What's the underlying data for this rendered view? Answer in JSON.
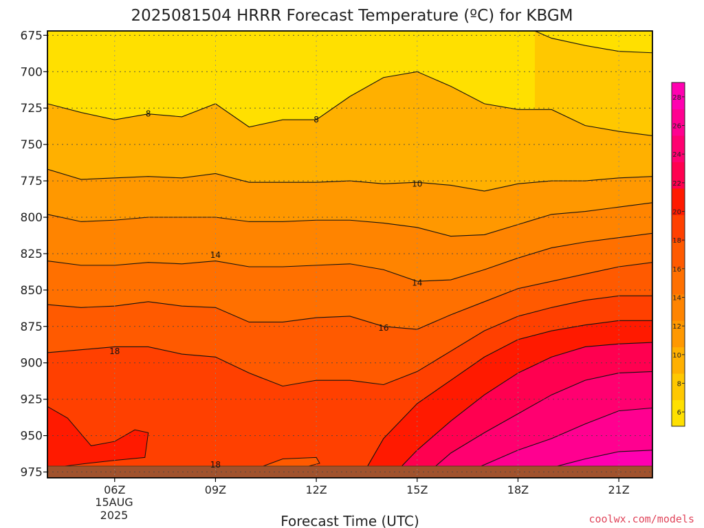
{
  "chart_data": {
    "type": "heatmap",
    "title": "2025081504 HRRR Forecast Temperature (ºC) for KBGM",
    "xlabel": "Forecast Time (UTC)",
    "ylabel": "",
    "x_ticks": [
      {
        "hour": 6,
        "label": "06Z"
      },
      {
        "hour": 9,
        "label": "09Z"
      },
      {
        "hour": 12,
        "label": "12Z"
      },
      {
        "hour": 15,
        "label": "15Z"
      },
      {
        "hour": 18,
        "label": "18Z"
      },
      {
        "hour": 21,
        "label": "21Z"
      }
    ],
    "date_label_lines": [
      "15AUG",
      "2025"
    ],
    "xlim": [
      4,
      22
    ],
    "y_ticks": [
      675,
      700,
      725,
      750,
      775,
      800,
      825,
      850,
      875,
      900,
      925,
      950,
      975
    ],
    "ylim": [
      672,
      979
    ],
    "ground_level_mb": 971,
    "ground_color": "#a0522d",
    "grid": true,
    "colorbar": {
      "ticks": [
        6,
        8,
        10,
        12,
        14,
        16,
        18,
        20,
        22,
        24,
        26,
        28
      ],
      "min": 5,
      "max": 29,
      "colors": [
        "#ffe000",
        "#ffc800",
        "#ffb000",
        "#ff9800",
        "#ff8400",
        "#ff7000",
        "#ff5a00",
        "#ff4000",
        "#ff1a00",
        "#ff0050",
        "#ff0070",
        "#ff0090",
        "#ff00b0"
      ]
    },
    "contour_labels": [
      {
        "text": "8",
        "hour": 7.0,
        "mb": 729
      },
      {
        "text": "8",
        "hour": 12.0,
        "mb": 733
      },
      {
        "text": "10",
        "hour": 15.0,
        "mb": 777
      },
      {
        "text": "14",
        "hour": 9.0,
        "mb": 826
      },
      {
        "text": "14",
        "hour": 15.0,
        "mb": 845
      },
      {
        "text": "16",
        "hour": 14.0,
        "mb": 876
      },
      {
        "text": "18",
        "hour": 6.0,
        "mb": 892
      },
      {
        "text": "18",
        "hour": 9.0,
        "mb": 970
      }
    ],
    "isotherms": [
      {
        "value": 6,
        "points": [
          [
            18.5,
            672
          ],
          [
            19,
            677
          ],
          [
            20,
            682
          ],
          [
            21,
            686
          ],
          [
            22,
            687
          ]
        ]
      },
      {
        "value": 8,
        "points": [
          [
            4,
            722
          ],
          [
            5,
            728
          ],
          [
            6,
            733
          ],
          [
            7,
            729
          ],
          [
            8,
            731
          ],
          [
            9,
            722
          ],
          [
            10,
            738
          ],
          [
            11,
            733
          ],
          [
            12,
            733
          ],
          [
            13,
            717
          ],
          [
            14,
            704
          ],
          [
            15,
            700
          ],
          [
            16,
            710
          ],
          [
            17,
            722
          ],
          [
            18,
            726
          ],
          [
            19,
            726
          ],
          [
            20,
            737
          ],
          [
            21,
            741
          ],
          [
            22,
            744
          ]
        ]
      },
      {
        "value": 10,
        "points": [
          [
            4,
            767
          ],
          [
            5,
            774
          ],
          [
            6,
            773
          ],
          [
            7,
            772
          ],
          [
            8,
            773
          ],
          [
            9,
            770
          ],
          [
            10,
            776
          ],
          [
            11,
            776
          ],
          [
            12,
            776
          ],
          [
            13,
            775
          ],
          [
            14,
            777
          ],
          [
            15,
            776
          ],
          [
            16,
            778
          ],
          [
            17,
            782
          ],
          [
            18,
            777
          ],
          [
            19,
            775
          ],
          [
            20,
            775
          ],
          [
            21,
            773
          ],
          [
            22,
            772
          ]
        ]
      },
      {
        "value": 12,
        "points": [
          [
            4,
            798
          ],
          [
            5,
            803
          ],
          [
            6,
            802
          ],
          [
            7,
            800
          ],
          [
            8,
            800
          ],
          [
            9,
            800
          ],
          [
            10,
            803
          ],
          [
            11,
            803
          ],
          [
            12,
            802
          ],
          [
            13,
            802
          ],
          [
            14,
            804
          ],
          [
            15,
            807
          ],
          [
            16,
            813
          ],
          [
            17,
            812
          ],
          [
            18,
            805
          ],
          [
            19,
            798
          ],
          [
            20,
            796
          ],
          [
            21,
            793
          ],
          [
            22,
            790
          ]
        ]
      },
      {
        "value": 14,
        "points": [
          [
            4,
            830
          ],
          [
            5,
            833
          ],
          [
            6,
            833
          ],
          [
            7,
            831
          ],
          [
            8,
            832
          ],
          [
            9,
            830
          ],
          [
            10,
            834
          ],
          [
            11,
            834
          ],
          [
            12,
            833
          ],
          [
            13,
            832
          ],
          [
            14,
            836
          ],
          [
            15,
            844
          ],
          [
            16,
            843
          ],
          [
            17,
            836
          ],
          [
            18,
            828
          ],
          [
            19,
            821
          ],
          [
            20,
            817
          ],
          [
            21,
            814
          ],
          [
            22,
            811
          ]
        ]
      },
      {
        "value": 16,
        "points": [
          [
            4,
            860
          ],
          [
            5,
            862
          ],
          [
            6,
            861
          ],
          [
            7,
            858
          ],
          [
            8,
            861
          ],
          [
            9,
            862
          ],
          [
            10,
            872
          ],
          [
            11,
            872
          ],
          [
            12,
            869
          ],
          [
            13,
            868
          ],
          [
            14,
            875
          ],
          [
            15,
            877
          ],
          [
            16,
            867
          ],
          [
            17,
            858
          ],
          [
            18,
            849
          ],
          [
            19,
            844
          ],
          [
            20,
            839
          ],
          [
            21,
            834
          ],
          [
            22,
            831
          ]
        ]
      },
      {
        "value": 18,
        "points": [
          [
            4,
            893
          ],
          [
            5,
            891
          ],
          [
            6,
            889
          ],
          [
            7,
            889
          ],
          [
            8,
            894
          ],
          [
            9,
            896
          ],
          [
            10,
            907
          ],
          [
            11,
            916
          ],
          [
            12,
            912
          ],
          [
            13,
            912
          ],
          [
            14,
            915
          ],
          [
            15,
            906
          ],
          [
            16,
            892
          ],
          [
            17,
            878
          ],
          [
            18,
            868
          ],
          [
            19,
            862
          ],
          [
            20,
            857
          ],
          [
            21,
            854
          ],
          [
            22,
            854
          ]
        ]
      },
      {
        "value": 20,
        "points": [
          [
            13.5,
            972
          ],
          [
            14,
            952
          ],
          [
            15,
            928
          ],
          [
            16,
            912
          ],
          [
            17,
            896
          ],
          [
            18,
            884
          ],
          [
            19,
            878
          ],
          [
            20,
            874
          ],
          [
            21,
            871
          ],
          [
            22,
            871
          ]
        ]
      },
      {
        "value": 22,
        "points": [
          [
            14.5,
            972
          ],
          [
            15,
            960
          ],
          [
            16,
            940
          ],
          [
            17,
            922
          ],
          [
            18,
            907
          ],
          [
            19,
            896
          ],
          [
            20,
            889
          ],
          [
            21,
            887
          ],
          [
            22,
            886
          ]
        ]
      },
      {
        "value": 24,
        "points": [
          [
            15.5,
            972
          ],
          [
            16,
            962
          ],
          [
            17,
            948
          ],
          [
            18,
            935
          ],
          [
            19,
            922
          ],
          [
            20,
            912
          ],
          [
            21,
            907
          ],
          [
            22,
            906
          ]
        ]
      },
      {
        "value": 26,
        "points": [
          [
            16.5,
            975
          ],
          [
            17,
            970
          ],
          [
            18,
            960
          ],
          [
            19,
            952
          ],
          [
            20,
            942
          ],
          [
            21,
            933
          ],
          [
            22,
            931
          ]
        ]
      },
      {
        "value": 28,
        "points": [
          [
            18.5,
            975
          ],
          [
            19,
            972
          ],
          [
            20,
            966
          ],
          [
            21,
            961
          ],
          [
            22,
            960
          ]
        ]
      }
    ],
    "pockets": [
      {
        "value": 20,
        "points": [
          [
            4,
            930
          ],
          [
            4.6,
            938
          ],
          [
            5.3,
            957
          ],
          [
            6,
            954
          ],
          [
            6.6,
            946
          ],
          [
            7,
            948
          ],
          [
            6.9,
            965
          ],
          [
            6,
            967
          ],
          [
            5.2,
            969
          ],
          [
            4.5,
            971
          ],
          [
            4,
            973
          ]
        ]
      },
      {
        "value": 16,
        "points": [
          [
            10.3,
            972
          ],
          [
            11,
            966
          ],
          [
            12,
            965
          ],
          [
            12.1,
            969
          ],
          [
            11.6,
            972
          ]
        ]
      }
    ]
  },
  "credit": "coolwx.com/models"
}
